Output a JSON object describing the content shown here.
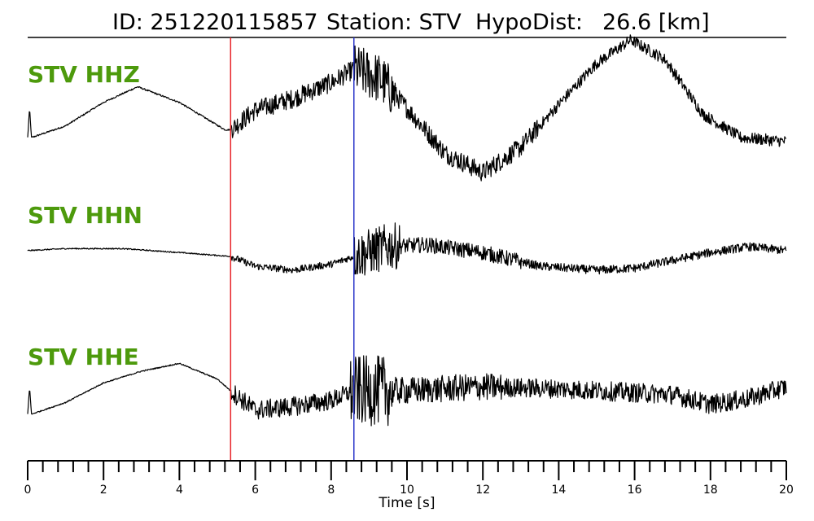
{
  "title": {
    "id_text": "ID: 251220115857",
    "station_text": "Station: STV",
    "hypodist_text": "HypoDist:",
    "hypodist_value": "26.6 [km]"
  },
  "chart_data": {
    "type": "line",
    "xlabel": "Time [s]",
    "xlim": [
      0,
      20
    ],
    "x_major_ticks": [
      0,
      2,
      4,
      6,
      8,
      10,
      12,
      14,
      16,
      18,
      20
    ],
    "x_minor_step": 0.4,
    "grid": false,
    "markers": [
      {
        "name": "P pick",
        "x": 5.35,
        "color": "#e8262b"
      },
      {
        "name": "S pick",
        "x": 8.6,
        "color": "#2b36c9"
      }
    ],
    "traces": [
      {
        "name": "STV HHZ",
        "label_color": "#4d9a0c",
        "trace_color": "#000000",
        "envelope_points": [
          [
            0,
            -0.1
          ],
          [
            0.05,
            0.05
          ],
          [
            0.1,
            -0.1
          ],
          [
            1.0,
            -0.04
          ],
          [
            2.0,
            0.08
          ],
          [
            2.9,
            0.16
          ],
          [
            4.0,
            0.08
          ],
          [
            5.2,
            -0.06
          ],
          [
            5.35,
            -0.06
          ],
          [
            6.0,
            0.04
          ],
          [
            7.0,
            0.1
          ],
          [
            8.0,
            0.18
          ],
          [
            8.6,
            0.25
          ],
          [
            9.3,
            0.2
          ],
          [
            10.0,
            0.05
          ],
          [
            11.0,
            -0.18
          ],
          [
            12.0,
            -0.28
          ],
          [
            13.0,
            -0.15
          ],
          [
            14.0,
            0.07
          ],
          [
            15.0,
            0.28
          ],
          [
            15.9,
            0.4
          ],
          [
            16.8,
            0.3
          ],
          [
            17.8,
            0.02
          ],
          [
            18.8,
            -0.1
          ],
          [
            20.0,
            -0.12
          ]
        ],
        "noise_segments": [
          {
            "start": 0.0,
            "end": 5.35,
            "amp": 0.004
          },
          {
            "start": 5.35,
            "end": 8.6,
            "amp": 0.05
          },
          {
            "start": 8.6,
            "end": 9.7,
            "amp": 0.13
          },
          {
            "start": 9.7,
            "end": 13.5,
            "amp": 0.05
          },
          {
            "start": 13.5,
            "end": 20.0,
            "amp": 0.03
          }
        ]
      },
      {
        "name": "STV HHN",
        "label_color": "#4d9a0c",
        "trace_color": "#000000",
        "envelope_points": [
          [
            0,
            0.03
          ],
          [
            1.0,
            0.04
          ],
          [
            2.5,
            0.04
          ],
          [
            4.0,
            0.02
          ],
          [
            5.35,
            0.0
          ],
          [
            6.0,
            -0.05
          ],
          [
            7.0,
            -0.07
          ],
          [
            8.0,
            -0.04
          ],
          [
            8.6,
            0.0
          ],
          [
            9.5,
            0.05
          ],
          [
            10.5,
            0.06
          ],
          [
            12.0,
            0.02
          ],
          [
            13.5,
            -0.05
          ],
          [
            15.0,
            -0.07
          ],
          [
            16.0,
            -0.06
          ],
          [
            17.0,
            -0.02
          ],
          [
            18.0,
            0.02
          ],
          [
            19.0,
            0.05
          ],
          [
            20.0,
            0.03
          ]
        ],
        "noise_segments": [
          {
            "start": 0.0,
            "end": 5.35,
            "amp": 0.003
          },
          {
            "start": 5.35,
            "end": 8.6,
            "amp": 0.018
          },
          {
            "start": 8.6,
            "end": 9.8,
            "amp": 0.12
          },
          {
            "start": 9.8,
            "end": 13.0,
            "amp": 0.04
          },
          {
            "start": 13.0,
            "end": 20.0,
            "amp": 0.022
          }
        ]
      },
      {
        "name": "STV HHE",
        "label_color": "#4d9a0c",
        "trace_color": "#000000",
        "envelope_points": [
          [
            0,
            -0.12
          ],
          [
            0.05,
            0.02
          ],
          [
            0.1,
            -0.12
          ],
          [
            1.0,
            -0.06
          ],
          [
            2.0,
            0.04
          ],
          [
            3.0,
            0.1
          ],
          [
            4.0,
            0.14
          ],
          [
            5.0,
            0.06
          ],
          [
            5.35,
            0.0
          ],
          [
            6.0,
            -0.1
          ],
          [
            7.0,
            -0.08
          ],
          [
            8.0,
            -0.05
          ],
          [
            8.6,
            0.0
          ],
          [
            10.0,
            0.0
          ],
          [
            12.0,
            0.02
          ],
          [
            14.0,
            0.01
          ],
          [
            16.0,
            -0.01
          ],
          [
            17.0,
            -0.02
          ],
          [
            18.0,
            -0.07
          ],
          [
            19.0,
            -0.04
          ],
          [
            20.0,
            0.02
          ]
        ],
        "noise_segments": [
          {
            "start": 0.0,
            "end": 5.35,
            "amp": 0.003
          },
          {
            "start": 5.35,
            "end": 8.5,
            "amp": 0.05
          },
          {
            "start": 8.5,
            "end": 9.6,
            "amp": 0.18
          },
          {
            "start": 9.6,
            "end": 12.5,
            "amp": 0.07
          },
          {
            "start": 12.5,
            "end": 20.0,
            "amp": 0.05
          }
        ]
      }
    ]
  }
}
